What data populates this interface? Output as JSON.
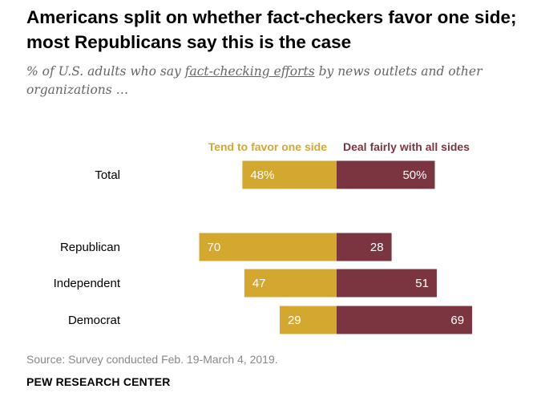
{
  "title": "Americans split on whether fact-checkers favor one side; most Republicans say this is the case",
  "subtitle": {
    "before": "% of U.S. adults who say ",
    "underlined": "fact-checking efforts",
    "after": " by news outlets and other organizations …"
  },
  "source": "Source: Survey conducted Feb. 19-March 4, 2019.",
  "org": "PEW RESEARCH CENTER",
  "colors": {
    "favor": "#D4A82F",
    "fair": "#7B3540"
  },
  "chart_data": {
    "type": "bar",
    "orientation": "diverging-horizontal",
    "categories": [
      "Total",
      "Republican",
      "Independent",
      "Democrat"
    ],
    "series": [
      {
        "name": "Tend to favor one side",
        "values": [
          48,
          70,
          47,
          29
        ],
        "labels": [
          "48%",
          "70",
          "47",
          "29"
        ]
      },
      {
        "name": "Deal fairly with all sides",
        "values": [
          50,
          28,
          51,
          69
        ],
        "labels": [
          "50%",
          "28",
          "51",
          "69"
        ]
      }
    ],
    "legend": "top"
  }
}
